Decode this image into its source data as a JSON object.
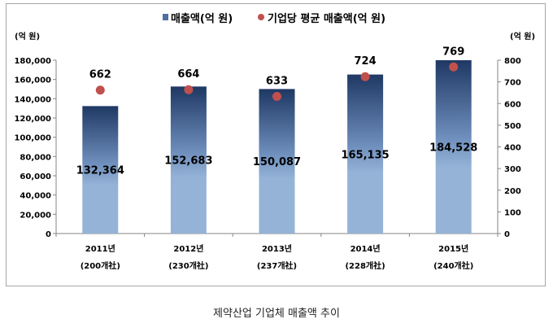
{
  "chart_data": {
    "type": "bar",
    "categories": [
      "2011년",
      "2012년",
      "2013년",
      "2014년",
      "2015년"
    ],
    "category_sublabels": [
      "(200개社)",
      "(230개社)",
      "(237개社)",
      "(228개社)",
      "(240개社)"
    ],
    "series": [
      {
        "name": "매출액(억 원)",
        "type": "bar",
        "axis": "left",
        "values": [
          132364,
          152683,
          150087,
          165135,
          184528
        ],
        "labels": [
          "132,364",
          "152,683",
          "150,087",
          "165,135",
          "184,528"
        ],
        "color": "#1f3864"
      },
      {
        "name": "기업당 평균 매출액(억 원)",
        "type": "scatter",
        "axis": "right",
        "values": [
          662,
          664,
          633,
          724,
          769
        ],
        "labels": [
          "662",
          "664",
          "633",
          "724",
          "769"
        ],
        "color": "#c0504d"
      }
    ],
    "ylabel_left": "(억 원)",
    "ylabel_right": "(억 원)",
    "ylim_left": [
      0,
      180000
    ],
    "ylim_right": [
      0,
      800
    ],
    "yticks_left": [
      "0",
      "20,000",
      "40,000",
      "60,000",
      "80,000",
      "100,000",
      "120,000",
      "140,000",
      "160,000",
      "180,000"
    ],
    "yticks_right": [
      "0",
      "100",
      "200",
      "300",
      "400",
      "500",
      "600",
      "700",
      "800"
    ],
    "legend_position": "top-center",
    "caption": "제약산업 기업체 매출액 추이"
  }
}
